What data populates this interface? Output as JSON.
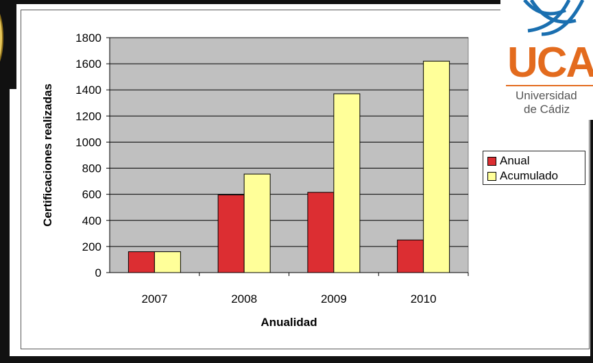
{
  "logo": {
    "brand": "UCA",
    "line1": "Universidad",
    "line2": "de Cádiz"
  },
  "colors": {
    "anual": "#dc2e32",
    "acumulado": "#ffff99",
    "plot_bg": "#c0c0c0",
    "logo_orange": "#e36b1e",
    "logo_blue": "#1a6fb0"
  },
  "chart_data": {
    "type": "bar",
    "title": "",
    "xlabel": "Anualidad",
    "ylabel": "Certificaciones realizadas",
    "ylim": [
      0,
      1800
    ],
    "yticks": [
      "0",
      "200",
      "400",
      "600",
      "800",
      "1000",
      "1200",
      "1400",
      "1600",
      "1800"
    ],
    "categories": [
      "2007",
      "2008",
      "2009",
      "2010"
    ],
    "grid": true,
    "legend_position": "right",
    "series": [
      {
        "name": "Anual",
        "values": [
          160,
          595,
          615,
          250
        ]
      },
      {
        "name": "Acumulado",
        "values": [
          160,
          755,
          1370,
          1620
        ]
      }
    ]
  }
}
